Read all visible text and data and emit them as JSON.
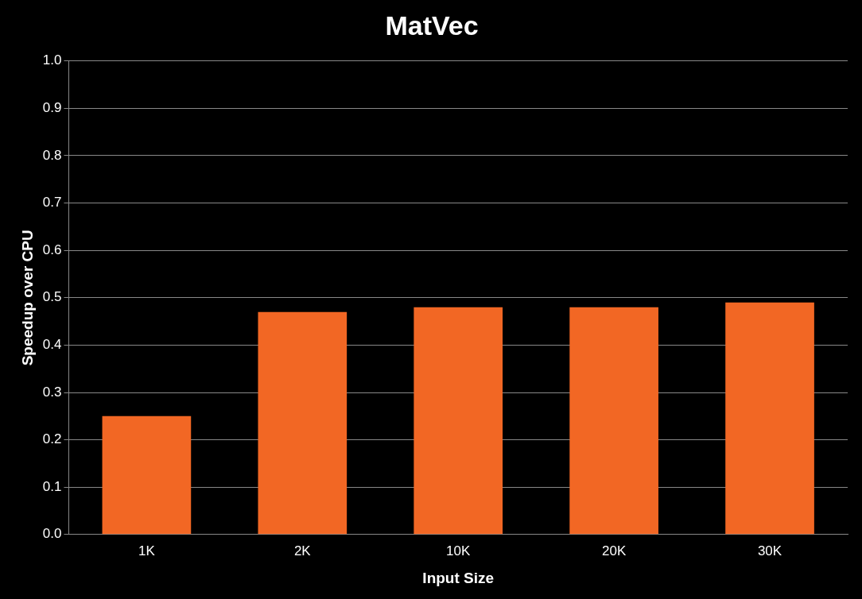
{
  "chart_data": {
    "type": "bar",
    "title": "MatVec",
    "xlabel": "Input Size",
    "ylabel": "Speedup over CPU",
    "categories": [
      "1K",
      "2K",
      "10K",
      "20K",
      "30K"
    ],
    "values": [
      0.25,
      0.47,
      0.48,
      0.48,
      0.49
    ],
    "color": "#f26724",
    "ylim": [
      0,
      1
    ],
    "yticks": [
      {
        "value": 0,
        "label": "0.0"
      },
      {
        "value": 0.1,
        "label": "0.1"
      },
      {
        "value": 0.2,
        "label": "0.2"
      },
      {
        "value": 0.3,
        "label": "0.3"
      },
      {
        "value": 0.4,
        "label": "0.4"
      },
      {
        "value": 0.5,
        "label": "0.5"
      },
      {
        "value": 0.6,
        "label": "0.6"
      },
      {
        "value": 0.7,
        "label": "0.7"
      },
      {
        "value": 0.8,
        "label": "0.8"
      },
      {
        "value": 0.9,
        "label": "0.9"
      },
      {
        "value": 1,
        "label": "1.0"
      }
    ],
    "grid": "y",
    "legend": false
  }
}
